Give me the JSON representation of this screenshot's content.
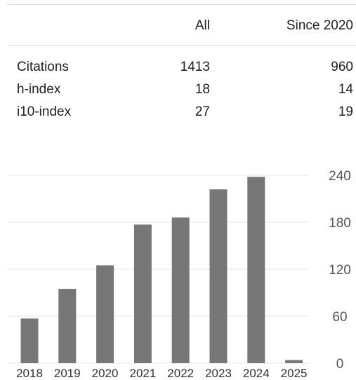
{
  "table": {
    "header": {
      "col_all": "All",
      "col_since": "Since 2020"
    },
    "rows": [
      {
        "label": "Citations",
        "all": "1413",
        "since": "960"
      },
      {
        "label": "h-index",
        "all": "18",
        "since": "14"
      },
      {
        "label": "i10-index",
        "all": "27",
        "since": "19"
      }
    ]
  },
  "chart_data": {
    "type": "bar",
    "categories": [
      "2018",
      "2019",
      "2020",
      "2021",
      "2022",
      "2023",
      "2024",
      "2025"
    ],
    "values": [
      57,
      95,
      125,
      177,
      186,
      222,
      238,
      4
    ],
    "ylim": [
      0,
      240
    ],
    "yticks": [
      "0",
      "60",
      "120",
      "180",
      "240"
    ],
    "grid": true,
    "bar_color": "#777777",
    "grid_color": "#e5e5e5"
  }
}
